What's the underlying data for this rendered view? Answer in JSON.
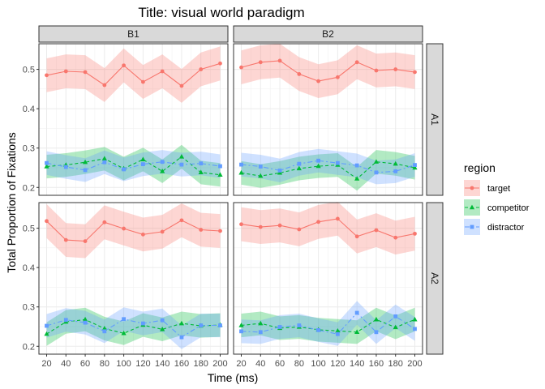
{
  "chart_data": {
    "type": "line",
    "title": "Title: visual world paradigm",
    "xlabel": "Time (ms)",
    "ylabel": "Total Proportion of Fixations",
    "x": [
      20,
      40,
      60,
      80,
      100,
      120,
      140,
      160,
      180,
      200
    ],
    "xlim": [
      12,
      208
    ],
    "ylim": [
      0.18,
      0.565
    ],
    "xticks": [
      20,
      40,
      60,
      80,
      100,
      120,
      140,
      160,
      180,
      200
    ],
    "yticks": [
      0.2,
      0.3,
      0.4,
      0.5
    ],
    "ytick_labels": [
      "0.2",
      "0.3",
      "0.4",
      "0.5"
    ],
    "facet_columns": [
      "B1",
      "B2"
    ],
    "facet_rows": [
      "A1",
      "A2"
    ],
    "grid": true,
    "legend_title": "region",
    "legend_position": "right",
    "series_meta": [
      {
        "name": "target",
        "color": "#F8766D",
        "marker": "circle",
        "line": "solid"
      },
      {
        "name": "competitor",
        "color": "#00BA38",
        "marker": "triangle",
        "line": "dashed"
      },
      {
        "name": "distractor",
        "color": "#619CFF",
        "marker": "square",
        "line": "dashdot"
      }
    ],
    "panels": [
      {
        "row": "A1",
        "col": "B1",
        "series": [
          {
            "name": "target",
            "values": [
              0.485,
              0.495,
              0.493,
              0.46,
              0.51,
              0.468,
              0.495,
              0.458,
              0.5,
              0.515
            ],
            "band": 0.043
          },
          {
            "name": "competitor",
            "values": [
              0.253,
              0.257,
              0.264,
              0.273,
              0.248,
              0.271,
              0.241,
              0.278,
              0.238,
              0.232
            ],
            "band": 0.03
          },
          {
            "name": "distractor",
            "values": [
              0.262,
              0.252,
              0.244,
              0.264,
              0.246,
              0.259,
              0.265,
              0.258,
              0.261,
              0.254
            ],
            "band": 0.03
          }
        ]
      },
      {
        "row": "A1",
        "col": "B2",
        "series": [
          {
            "name": "target",
            "values": [
              0.505,
              0.518,
              0.522,
              0.488,
              0.47,
              0.48,
              0.518,
              0.497,
              0.5,
              0.493
            ],
            "band": 0.043
          },
          {
            "name": "competitor",
            "values": [
              0.237,
              0.229,
              0.237,
              0.248,
              0.254,
              0.257,
              0.222,
              0.265,
              0.26,
              0.25
            ],
            "band": 0.03
          },
          {
            "name": "distractor",
            "values": [
              0.258,
              0.253,
              0.243,
              0.26,
              0.268,
              0.262,
              0.256,
              0.238,
              0.241,
              0.257
            ],
            "band": 0.03
          }
        ]
      },
      {
        "row": "A2",
        "col": "B1",
        "series": [
          {
            "name": "target",
            "values": [
              0.518,
              0.47,
              0.467,
              0.515,
              0.499,
              0.484,
              0.491,
              0.52,
              0.496,
              0.493
            ],
            "band": 0.043
          },
          {
            "name": "competitor",
            "values": [
              0.231,
              0.262,
              0.268,
              0.245,
              0.233,
              0.254,
              0.243,
              0.258,
              0.252,
              0.254
            ],
            "band": 0.03
          },
          {
            "name": "distractor",
            "values": [
              0.252,
              0.267,
              0.26,
              0.238,
              0.269,
              0.258,
              0.266,
              0.223,
              0.253,
              0.253
            ],
            "band": 0.03
          }
        ]
      },
      {
        "row": "A2",
        "col": "B2",
        "series": [
          {
            "name": "target",
            "values": [
              0.51,
              0.503,
              0.507,
              0.497,
              0.516,
              0.524,
              0.479,
              0.495,
              0.476,
              0.486
            ],
            "band": 0.043
          },
          {
            "name": "competitor",
            "values": [
              0.253,
              0.258,
              0.246,
              0.249,
              0.242,
              0.239,
              0.236,
              0.268,
              0.248,
              0.268
            ],
            "band": 0.03
          },
          {
            "name": "distractor",
            "values": [
              0.238,
              0.236,
              0.249,
              0.253,
              0.241,
              0.231,
              0.285,
              0.236,
              0.276,
              0.244
            ],
            "band": 0.03
          }
        ]
      }
    ]
  }
}
